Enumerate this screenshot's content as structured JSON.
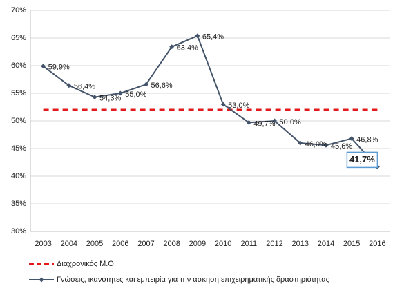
{
  "chart_data": {
    "type": "line",
    "categories": [
      "2003",
      "2004",
      "2005",
      "2006",
      "2007",
      "2008",
      "2009",
      "2010",
      "2011",
      "2012",
      "2013",
      "2014",
      "2015",
      "2016"
    ],
    "series": [
      {
        "name": "Διαχρονικός Μ.Ο",
        "color": "#e31a1c",
        "dashed": true,
        "values": [
          52,
          52,
          52,
          52,
          52,
          52,
          52,
          52,
          52,
          52,
          52,
          52,
          52,
          52
        ]
      },
      {
        "name": "Γνώσεις, ικανότητες και εμπειρία για την άσκηση επιχειρηματικής δραστηριότητας",
        "color": "#44546a",
        "markers": true,
        "values": [
          59.9,
          56.4,
          54.3,
          55.0,
          56.6,
          63.4,
          65.4,
          53.0,
          49.7,
          50.0,
          46.0,
          45.6,
          46.8,
          41.7
        ],
        "value_labels": [
          "59,9%",
          "56,4%",
          "54,3%",
          "55,0%",
          "56,6%",
          "63,4%",
          "65,4%",
          "53,0%",
          "49,7%",
          "50,0%",
          "46,0%",
          "45,6%",
          "46,8%",
          "41,7%"
        ]
      }
    ],
    "ylim": [
      30,
      70
    ],
    "yticks": [
      {
        "value": 30,
        "label": "30%"
      },
      {
        "value": 35,
        "label": "35%"
      },
      {
        "value": 40,
        "label": "40%"
      },
      {
        "value": 45,
        "label": "45%"
      },
      {
        "value": 50,
        "label": "50%"
      },
      {
        "value": 55,
        "label": "55%"
      },
      {
        "value": 60,
        "label": "60%"
      },
      {
        "value": 65,
        "label": "65%"
      },
      {
        "value": 70,
        "label": "70%"
      }
    ],
    "grid": true,
    "legend": "bottom"
  }
}
